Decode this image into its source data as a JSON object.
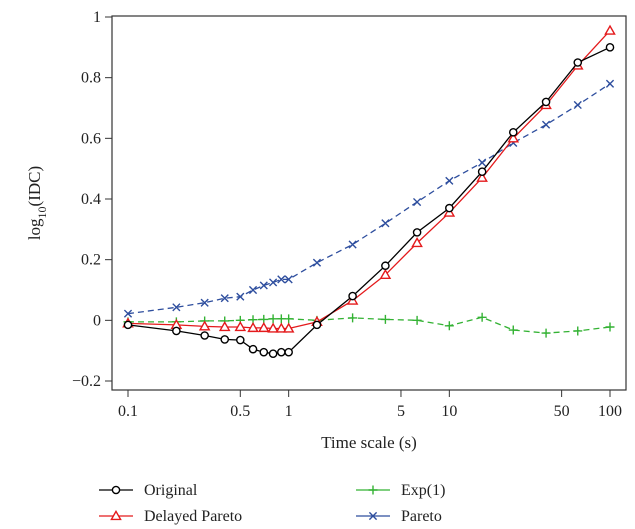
{
  "chart_data": {
    "type": "line",
    "xscale": "log",
    "xlabel": "Time scale (s)",
    "ylabel_main": "log",
    "ylabel_sub": "10",
    "ylabel_tail": "(IDC)",
    "xlim": [
      0.1,
      100
    ],
    "ylim": [
      -0.2,
      1
    ],
    "xticks": [
      {
        "value": 0.1,
        "label": "0.1"
      },
      {
        "value": 0.5,
        "label": "0.5"
      },
      {
        "value": 1,
        "label": "1"
      },
      {
        "value": 5,
        "label": "5"
      },
      {
        "value": 10,
        "label": "10"
      },
      {
        "value": 50,
        "label": "50"
      },
      {
        "value": 100,
        "label": "100"
      }
    ],
    "yticks": [
      {
        "value": -0.2,
        "label": "−0.2"
      },
      {
        "value": 0,
        "label": "0"
      },
      {
        "value": 0.2,
        "label": "0.2"
      },
      {
        "value": 0.4,
        "label": "0.4"
      },
      {
        "value": 0.6,
        "label": "0.6"
      },
      {
        "value": 0.8,
        "label": "0.8"
      },
      {
        "value": 1,
        "label": "1"
      }
    ],
    "grid": false,
    "legend_position": "bottom",
    "series": [
      {
        "name": "Original",
        "color": "#000000",
        "marker": "circle",
        "dash": "solid",
        "x": [
          0.1,
          0.2,
          0.3,
          0.4,
          0.5,
          0.6,
          0.7,
          0.8,
          0.9,
          1.0,
          1.5,
          2.5,
          4,
          6.3,
          10,
          16,
          25,
          40,
          63,
          100
        ],
        "y": [
          -0.015,
          -0.035,
          -0.05,
          -0.063,
          -0.065,
          -0.095,
          -0.105,
          -0.11,
          -0.105,
          -0.105,
          -0.015,
          0.08,
          0.18,
          0.29,
          0.37,
          0.49,
          0.62,
          0.72,
          0.85,
          0.9
        ]
      },
      {
        "name": "Delayed Pareto",
        "color": "#e41a1c",
        "marker": "triangle",
        "dash": "solid",
        "x": [
          0.1,
          0.2,
          0.3,
          0.4,
          0.5,
          0.6,
          0.7,
          0.8,
          0.9,
          1.0,
          1.5,
          2.5,
          4,
          6.3,
          10,
          16,
          25,
          40,
          63,
          100
        ],
        "y": [
          -0.01,
          -0.015,
          -0.02,
          -0.022,
          -0.022,
          -0.025,
          -0.025,
          -0.027,
          -0.027,
          -0.027,
          -0.005,
          0.065,
          0.15,
          0.255,
          0.355,
          0.47,
          0.6,
          0.71,
          0.84,
          0.955
        ]
      },
      {
        "name": "Exp(1)",
        "color": "#33b233",
        "marker": "plus",
        "dash": "dashed",
        "x": [
          0.1,
          0.2,
          0.3,
          0.4,
          0.5,
          0.6,
          0.7,
          0.8,
          0.9,
          1.0,
          1.5,
          2.5,
          4,
          6.3,
          10,
          16,
          25,
          40,
          63,
          100
        ],
        "y": [
          -0.005,
          -0.005,
          -0.002,
          -0.002,
          0.0,
          0.002,
          0.003,
          0.005,
          0.005,
          0.005,
          0.0,
          0.008,
          0.003,
          0.0,
          -0.018,
          0.01,
          -0.032,
          -0.042,
          -0.035,
          -0.022
        ]
      },
      {
        "name": "Pareto",
        "color": "#2e4e9e",
        "marker": "x",
        "dash": "dashed",
        "x": [
          0.1,
          0.2,
          0.3,
          0.4,
          0.5,
          0.6,
          0.7,
          0.8,
          0.9,
          1.0,
          1.5,
          2.5,
          4,
          6.3,
          10,
          16,
          25,
          40,
          63,
          100
        ],
        "y": [
          0.022,
          0.043,
          0.058,
          0.073,
          0.078,
          0.1,
          0.115,
          0.125,
          0.135,
          0.135,
          0.19,
          0.25,
          0.32,
          0.39,
          0.46,
          0.52,
          0.585,
          0.645,
          0.71,
          0.78
        ]
      }
    ]
  }
}
